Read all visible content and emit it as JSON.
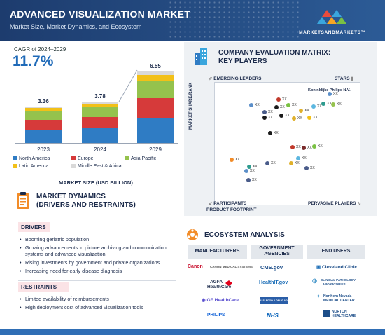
{
  "header": {
    "title": "ADVANCED VISUALIZATION MARKET",
    "subtitle": "Market Size, Market Dynamics, and Ecosystem",
    "brand": "MARKETSANDMARKETS™"
  },
  "cagr": {
    "label": "CAGR of 2024–2029",
    "value": "11.7%"
  },
  "chart_data": {
    "type": "bar",
    "stacked": true,
    "categories": [
      "2023",
      "2024",
      "2029"
    ],
    "totals": [
      "3.36",
      "3.78",
      "6.55"
    ],
    "series": [
      {
        "name": "North America",
        "color": "#2f7cc4",
        "values": [
          1.18,
          1.32,
          2.3
        ]
      },
      {
        "name": "Europe",
        "color": "#d63a3a",
        "values": [
          0.94,
          1.06,
          1.83
        ]
      },
      {
        "name": "Asia Pacific",
        "color": "#95c24d",
        "values": [
          0.77,
          0.87,
          1.51
        ]
      },
      {
        "name": "Latin America",
        "color": "#f2c018",
        "values": [
          0.3,
          0.34,
          0.59
        ]
      },
      {
        "name": "Middle East & Africa",
        "color": "#d9d9d9",
        "values": [
          0.17,
          0.19,
          0.32
        ]
      }
    ],
    "xlabel": "MARKET SIZE (USD BILLION)"
  },
  "market_dynamics": {
    "title_line1": "MARKET DYNAMICS",
    "title_line2": "(DRIVERS AND RESTRAINTS)",
    "drivers_label": "DRIVERS",
    "drivers": [
      "Booming geriatric population",
      "Growing advancements in picture archiving and communication systems and advanced visualization",
      "Rising investments by government and private organizations",
      "Increasing need for early disease diagnosis"
    ],
    "restraints_label": "RESTRAINTS",
    "restraints": [
      "Limited availability of reimbursements",
      "High deployment cost of advanced visualization tools"
    ]
  },
  "company_matrix": {
    "title_line1": "COMPANY EVALUATION MATRIX:",
    "title_line2": "KEY PLAYERS",
    "quadrants": {
      "top_left": "EMERGING LEADERS",
      "top_right": "STARS",
      "bottom_left": "PARTICIPANTS",
      "bottom_right": "PERVASIVE PLAYERS"
    },
    "y_axis": "MARKET SHARE/RANK",
    "x_axis": "PRODUCT FOOTPRINT",
    "highlighted": "Koninklijke Philips N.V.",
    "point_label": "XX"
  },
  "ecosystem": {
    "title": "ECOSYSTEM ANALYSIS",
    "headers": [
      "MANUFACTURERS",
      "GOVERNMENT AGENCIES",
      "END USERS"
    ],
    "manufacturers": [
      "Canon",
      "AGFA HealthCare",
      "GE HealthCare",
      "PHILIPS"
    ],
    "canon_sub": "CANON MEDICAL SYSTEMS",
    "agencies": [
      "CMS.gov",
      "HealthIT.gov",
      "U.S. FOOD & DRUG ADMINISTRATION",
      "NHS"
    ],
    "end_users": [
      "Cleveland Clinic",
      "CLINICAL PATHOLOGY LABORATORIES",
      "Northern Nevada MEDICAL CENTER",
      "NORTON HEALTHCARE"
    ]
  }
}
